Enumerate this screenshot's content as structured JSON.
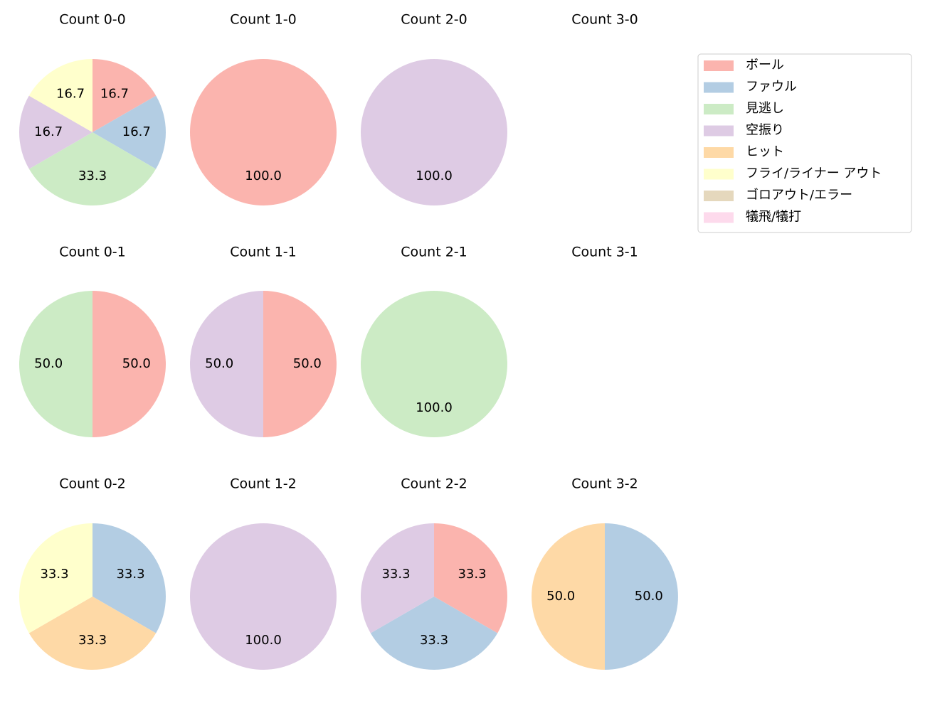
{
  "legend": {
    "labels": [
      "ボール",
      "ファウル",
      "見逃し",
      "空振り",
      "ヒット",
      "フライ/ライナー アウト",
      "ゴロアウト/エラー",
      "犠飛/犠打"
    ],
    "colors": [
      "#fbb4ae",
      "#b3cde3",
      "#ccebc5",
      "#decbe4",
      "#fed9a6",
      "#ffffcc",
      "#e5d8bd",
      "#fddaec"
    ]
  },
  "chart_data": [
    {
      "type": "pie",
      "title": "Count 0-0",
      "categories": [
        "ボール",
        "ファウル",
        "見逃し",
        "空振り",
        "フライ/ライナー アウト"
      ],
      "values": [
        16.7,
        16.7,
        33.3,
        16.7,
        16.7
      ],
      "value_labels": [
        "16.7",
        "16.7",
        "33.3",
        "16.7",
        "16.7"
      ]
    },
    {
      "type": "pie",
      "title": "Count 1-0",
      "categories": [
        "ボール"
      ],
      "values": [
        100
      ],
      "value_labels": [
        "100.0"
      ]
    },
    {
      "type": "pie",
      "title": "Count 2-0",
      "categories": [
        "空振り"
      ],
      "values": [
        100
      ],
      "value_labels": [
        "100.0"
      ]
    },
    {
      "type": "pie",
      "title": "Count 3-0",
      "categories": [],
      "values": [],
      "value_labels": []
    },
    {
      "type": "pie",
      "title": "Count 0-1",
      "categories": [
        "ボール",
        "見逃し"
      ],
      "values": [
        50,
        50
      ],
      "value_labels": [
        "50.0",
        "50.0"
      ]
    },
    {
      "type": "pie",
      "title": "Count 1-1",
      "categories": [
        "ボール",
        "空振り"
      ],
      "values": [
        50,
        50
      ],
      "value_labels": [
        "50.0",
        "50.0"
      ]
    },
    {
      "type": "pie",
      "title": "Count 2-1",
      "categories": [
        "見逃し"
      ],
      "values": [
        100
      ],
      "value_labels": [
        "100.0"
      ]
    },
    {
      "type": "pie",
      "title": "Count 3-1",
      "categories": [],
      "values": [],
      "value_labels": []
    },
    {
      "type": "pie",
      "title": "Count 0-2",
      "categories": [
        "ファウル",
        "ヒット",
        "フライ/ライナー アウト"
      ],
      "values": [
        33.3,
        33.3,
        33.3
      ],
      "value_labels": [
        "33.3",
        "33.3",
        "33.3"
      ]
    },
    {
      "type": "pie",
      "title": "Count 1-2",
      "categories": [
        "空振り"
      ],
      "values": [
        100
      ],
      "value_labels": [
        "100.0"
      ]
    },
    {
      "type": "pie",
      "title": "Count 2-2",
      "categories": [
        "ボール",
        "ファウル",
        "空振り"
      ],
      "values": [
        33.3,
        33.3,
        33.3
      ],
      "value_labels": [
        "33.3",
        "33.3",
        "33.3"
      ]
    },
    {
      "type": "pie",
      "title": "Count 3-2",
      "categories": [
        "ファウル",
        "ヒット"
      ],
      "values": [
        50,
        50
      ],
      "value_labels": [
        "50.0",
        "50.0"
      ]
    }
  ]
}
